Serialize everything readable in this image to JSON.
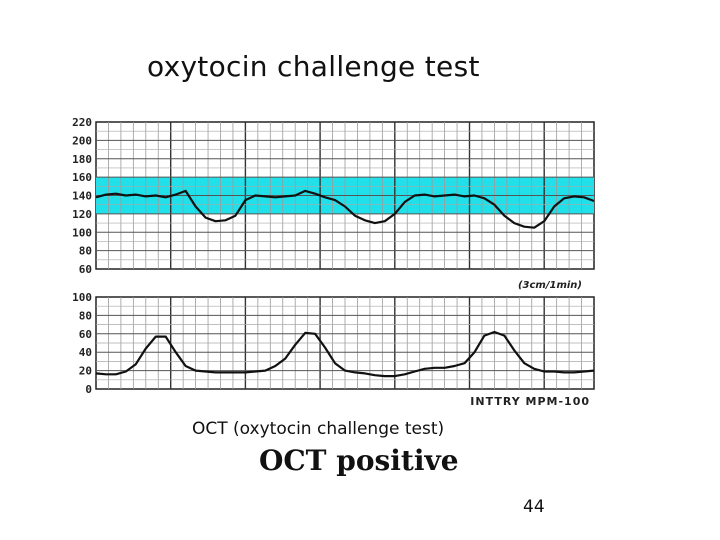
{
  "slide": {
    "title": "oxytocin challenge test",
    "caption": "OCT (oxytocin challenge test)",
    "result": "OCT positive",
    "page_number": "44"
  },
  "chart_data": [
    {
      "type": "line",
      "title": "",
      "ylabel": "",
      "xlabel": "",
      "ylim": [
        60,
        220
      ],
      "yticks": [
        "220",
        "200",
        "180",
        "160",
        "140",
        "120",
        "100",
        "80",
        "60"
      ],
      "grid": true,
      "band": {
        "from": 120,
        "to": 160,
        "color": "#22e0ea"
      },
      "annotation": "(3cm/1min)",
      "line_color": "#111111",
      "series": [
        {
          "x": [
            0,
            2,
            4,
            6,
            8,
            10,
            12,
            14,
            16,
            18,
            20,
            22,
            24,
            26,
            28,
            30,
            32,
            34,
            36,
            38,
            40,
            42,
            44,
            46,
            48,
            50,
            52,
            54,
            56,
            58,
            60,
            62,
            64,
            66,
            68,
            70,
            72,
            74,
            76,
            78,
            80,
            82,
            84,
            86,
            88,
            90,
            92,
            94,
            96,
            98,
            100
          ],
          "values": [
            138,
            141,
            142,
            140,
            141,
            139,
            140,
            138,
            141,
            145,
            128,
            116,
            112,
            113,
            118,
            135,
            140,
            139,
            138,
            139,
            140,
            145,
            142,
            138,
            135,
            128,
            118,
            113,
            110,
            112,
            120,
            133,
            140,
            141,
            139,
            140,
            141,
            139,
            140,
            137,
            130,
            118,
            110,
            106,
            105,
            112,
            128,
            137,
            139,
            138,
            134
          ]
        }
      ]
    },
    {
      "type": "line",
      "title": "",
      "ylabel": "",
      "xlabel": "",
      "ylim": [
        0,
        100
      ],
      "yticks": [
        "100",
        "80",
        "60",
        "40",
        "20",
        "0"
      ],
      "grid": true,
      "annotation": "INTTRY  MPM-100",
      "line_color": "#111111",
      "series": [
        {
          "x": [
            0,
            2,
            4,
            6,
            8,
            10,
            12,
            14,
            16,
            18,
            20,
            22,
            24,
            26,
            28,
            30,
            32,
            34,
            36,
            38,
            40,
            42,
            44,
            46,
            48,
            50,
            52,
            54,
            56,
            58,
            60,
            62,
            64,
            66,
            68,
            70,
            72,
            74,
            76,
            78,
            80,
            82,
            84,
            86,
            88,
            90,
            92,
            94,
            96,
            98,
            100
          ],
          "values": [
            17,
            16,
            16,
            19,
            27,
            44,
            57,
            57,
            40,
            25,
            20,
            19,
            18,
            18,
            18,
            18,
            19,
            20,
            25,
            33,
            48,
            61,
            60,
            45,
            28,
            20,
            18,
            17,
            15,
            14,
            14,
            16,
            19,
            22,
            23,
            23,
            25,
            28,
            40,
            58,
            62,
            58,
            42,
            28,
            22,
            19,
            19,
            18,
            18,
            19,
            20
          ]
        }
      ]
    }
  ]
}
